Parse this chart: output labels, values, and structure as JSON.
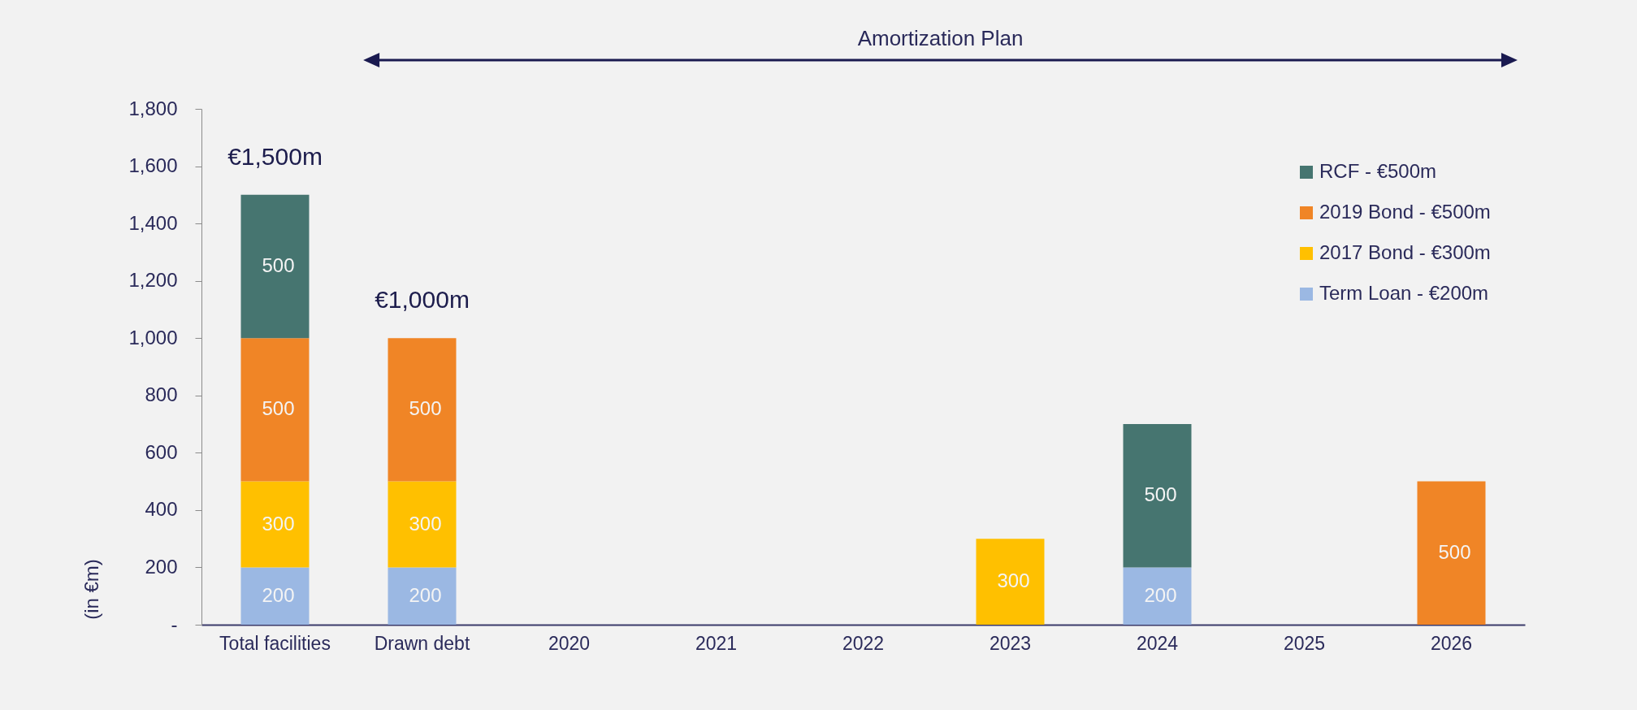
{
  "chart_data": {
    "type": "bar",
    "stacked": true,
    "ylabel": "(in €m)",
    "categories": [
      "Total facilities",
      "Drawn debt",
      "2020",
      "2021",
      "2022",
      "2023",
      "2024",
      "2025",
      "2026"
    ],
    "series": [
      {
        "name": "Term Loan - €200m",
        "color": "#9bb8e3",
        "values": [
          200,
          200,
          null,
          null,
          null,
          null,
          200,
          null,
          null
        ]
      },
      {
        "name": "2017 Bond - €300m",
        "color": "#ffc000",
        "values": [
          300,
          300,
          null,
          null,
          null,
          300,
          null,
          null,
          null
        ]
      },
      {
        "name": "2019 Bond - €500m",
        "color": "#f08526",
        "values": [
          500,
          500,
          null,
          null,
          null,
          null,
          null,
          null,
          500
        ]
      },
      {
        "name": "RCF - €500m",
        "color": "#467570",
        "values": [
          500,
          null,
          null,
          null,
          null,
          null,
          500,
          null,
          null
        ]
      }
    ],
    "ylim": [
      0,
      1800
    ],
    "yticks": [
      {
        "value": 0,
        "label": "-"
      },
      200,
      400,
      600,
      800,
      {
        "value": 1000,
        "label": "1,000"
      },
      {
        "value": 1200,
        "label": "1,200"
      },
      {
        "value": 1400,
        "label": "1,400"
      },
      {
        "value": 1600,
        "label": "1,600"
      },
      {
        "value": 1800,
        "label": "1,800"
      }
    ],
    "data_labels": true,
    "totals": [
      "€1,500m",
      "€1,000m",
      null,
      null,
      null,
      null,
      null,
      null,
      null
    ],
    "annotations": [
      "Amortization Plan"
    ],
    "legend": "top right",
    "grid": false
  }
}
